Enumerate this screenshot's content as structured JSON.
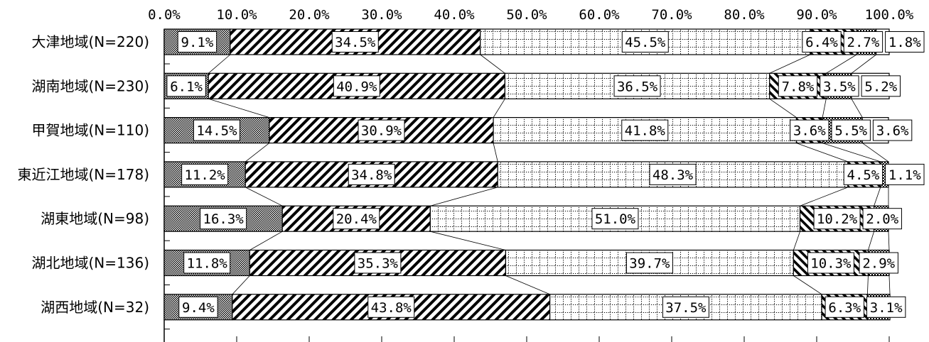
{
  "chart_data": {
    "type": "bar",
    "orientation": "horizontal",
    "stacked": true,
    "normalized": true,
    "xlim": [
      0,
      100
    ],
    "x_ticks": [
      "0.0%",
      "10.0%",
      "20.0%",
      "30.0%",
      "40.0%",
      "50.0%",
      "60.0%",
      "70.0%",
      "80.0%",
      "90.0%",
      "100.0%"
    ],
    "categories": [
      "大津地域(N=220)",
      "湖南地域(N=230)",
      "甲賀地域(N=110)",
      "東近江地域(N=178)",
      "湖東地域(N=98)",
      "湖北地域(N=136)",
      "湖西地域(N=32)"
    ],
    "series": [
      {
        "values": [
          9.1,
          6.1,
          14.5,
          11.2,
          16.3,
          11.8,
          9.4
        ],
        "labels": [
          "9.1%",
          "6.1%",
          "14.5%",
          "11.2%",
          "16.3%",
          "11.8%",
          "9.4%"
        ],
        "pattern": "dots-dense"
      },
      {
        "values": [
          34.5,
          40.9,
          30.9,
          34.8,
          20.4,
          35.3,
          43.8
        ],
        "labels": [
          "34.5%",
          "40.9%",
          "30.9%",
          "34.8%",
          "20.4%",
          "35.3%",
          "43.8%"
        ],
        "pattern": "diagonal-forward"
      },
      {
        "values": [
          45.5,
          36.5,
          41.8,
          48.3,
          51.0,
          39.7,
          37.5
        ],
        "labels": [
          "45.5%",
          "36.5%",
          "41.8%",
          "48.3%",
          "51.0%",
          "39.7%",
          "37.5%"
        ],
        "pattern": "dotted-grid"
      },
      {
        "values": [
          6.4,
          7.8,
          3.6,
          4.5,
          10.2,
          10.3,
          6.3
        ],
        "labels": [
          "6.4%",
          "7.8%",
          "3.6%",
          "4.5%",
          "10.2%",
          "10.3%",
          "6.3%"
        ],
        "pattern": "diagonal-back"
      },
      {
        "values": [
          2.7,
          3.5,
          5.5,
          1.1,
          2.0,
          2.9,
          3.1
        ],
        "labels": [
          "2.7%",
          "3.5%",
          "5.5%",
          "1.1%",
          "2.0%",
          "2.9%",
          "3.1%"
        ],
        "pattern": "checker"
      },
      {
        "values": [
          1.8,
          5.2,
          3.6,
          0,
          0,
          0,
          0
        ],
        "labels": [
          "1.8%",
          "5.2%",
          "3.6%",
          "",
          "",
          "",
          ""
        ],
        "pattern": "white"
      }
    ],
    "legend": "none",
    "grid": false
  }
}
